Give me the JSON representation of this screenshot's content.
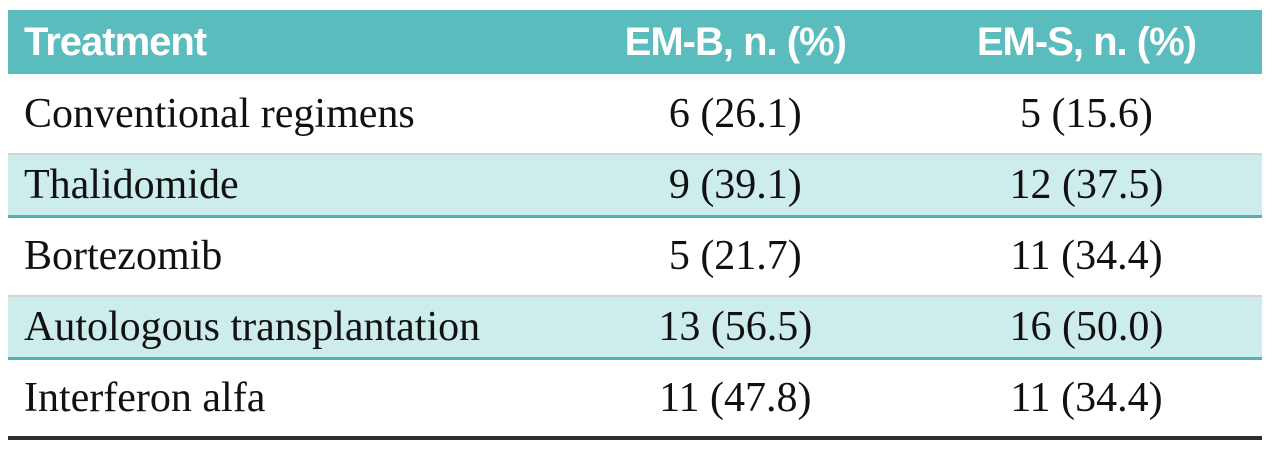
{
  "table": {
    "columns": [
      {
        "label": "Treatment"
      },
      {
        "label": "EM-B, n. (%)"
      },
      {
        "label": "EM-S, n. (%)"
      }
    ],
    "rows": [
      {
        "treatment": "Conventional regimens",
        "em_b": "6 (26.1)",
        "em_s": "5 (15.6)",
        "striped": false
      },
      {
        "treatment": "Thalidomide",
        "em_b": "9 (39.1)",
        "em_s": "12 (37.5)",
        "striped": true
      },
      {
        "treatment": "Bortezomib",
        "em_b": "5 (21.7)",
        "em_s": "11 (34.4)",
        "striped": false
      },
      {
        "treatment": "Autologous transplantation",
        "em_b": "13 (56.5)",
        "em_s": "16 (50.0)",
        "striped": true
      },
      {
        "treatment": "Interferon alfa",
        "em_b": "11 (47.8)",
        "em_s": "11 (34.4)",
        "striped": false
      }
    ],
    "colors": {
      "header_bg": "#5bbcbd",
      "header_text": "#ffffff",
      "stripe_bg": "#cdecec",
      "stripe_border": "#53b2b3",
      "row_separator": "#d4d4d4",
      "bottom_border": "#2e2e2e",
      "body_text": "#111111"
    }
  },
  "chart_data": {
    "type": "table",
    "title": "",
    "columns": [
      "Treatment",
      "EM-B, n. (%)",
      "EM-S, n. (%)"
    ],
    "rows": [
      [
        "Conventional regimens",
        "6 (26.1)",
        "5 (15.6)"
      ],
      [
        "Thalidomide",
        "9 (39.1)",
        "12 (37.5)"
      ],
      [
        "Bortezomib",
        "5 (21.7)",
        "11 (34.4)"
      ],
      [
        "Autologous transplantation",
        "13 (56.5)",
        "16 (50.0)"
      ],
      [
        "Interferon alfa",
        "11 (47.8)",
        "11 (34.4)"
      ]
    ]
  }
}
